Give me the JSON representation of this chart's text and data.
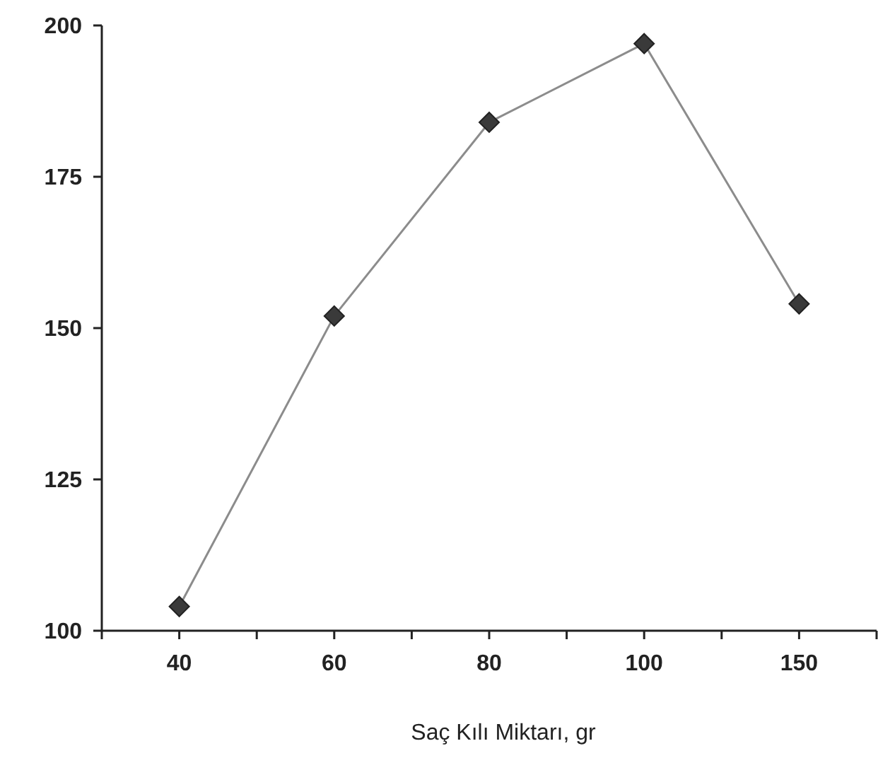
{
  "chart_data": {
    "type": "line",
    "xlabel": "Saç Kılı Miktarı, gr",
    "categories": [
      "40",
      "60",
      "80",
      "100",
      "150"
    ],
    "series": [
      {
        "color": "#8c8c8c",
        "values": [
          104,
          152,
          184,
          197,
          154
        ]
      }
    ],
    "ylim": [
      100,
      200
    ],
    "yticks": [
      100,
      125,
      150,
      175,
      200
    ],
    "marker": "diamond",
    "line_style": "solid"
  }
}
